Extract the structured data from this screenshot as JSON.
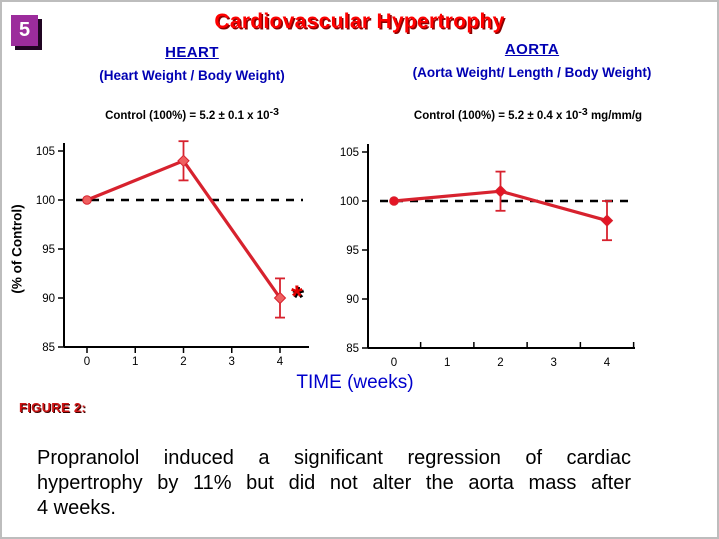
{
  "slide": {
    "number": "5",
    "title": "Cardiovascular Hypertrophy"
  },
  "y_axis_label": "(% of Control)",
  "x_axis_label": "TIME (weeks)",
  "figure": {
    "label": "FIGURE 2:",
    "caption_lines": [
      "Propranolol induced a significant regression of cardiac",
      "hypertrophy by 11% but did not alter the aorta mass after",
      "4 weeks."
    ]
  },
  "colors": {
    "title_red": "#ff0000",
    "title_shadow_dark_red": "#8b0000",
    "header_blue": "#0000b3",
    "time_label_blue": "#0000cc",
    "line_red": "#d7222e",
    "marker_heart_red": "#ef5f5f",
    "marker_aorta_red": "#e41525",
    "badge_purple": "#9c2c9c",
    "figure_label_red": "#cf1616",
    "axis_black": "#000000",
    "significance_red": "#e00000"
  },
  "chart_data": [
    {
      "type": "line",
      "title": "HEART",
      "subtitle": "(Heart Weight / Body Weight)",
      "control_label": "Control (100%) = 5.2 ± 0.1 x 10",
      "control_exponent": "-3",
      "control_unit": "",
      "xlabel": "TIME (weeks)",
      "ylabel": "(% of Control)",
      "x": [
        0,
        2,
        4
      ],
      "series": [
        {
          "name": "Heart weight (% of control)",
          "values": [
            100,
            104,
            90
          ],
          "errors": [
            0,
            2,
            2
          ]
        }
      ],
      "xticks": [
        0,
        1,
        2,
        3,
        4
      ],
      "yticks": [
        85,
        90,
        95,
        100,
        105
      ],
      "ylim": [
        85,
        107
      ],
      "reference_line": 100,
      "annotations": [
        {
          "text": "*",
          "x": 4.35,
          "y": 90.5
        }
      ]
    },
    {
      "type": "line",
      "title": "AORTA",
      "subtitle": "(Aorta Weight/ Length / Body Weight)",
      "control_label": "Control (100%) = 5.2 ± 0.4 x 10",
      "control_exponent": "-3",
      "control_unit": " mg/mm/g",
      "xlabel": "TIME (weeks)",
      "ylabel": "(% of Control)",
      "x": [
        0,
        2,
        4
      ],
      "series": [
        {
          "name": "Aorta weight/length (% of control)",
          "values": [
            100,
            101,
            98
          ],
          "errors": [
            0,
            2,
            2
          ]
        }
      ],
      "xticks": [
        0,
        1,
        2,
        3,
        4
      ],
      "yticks": [
        85,
        90,
        95,
        100,
        105
      ],
      "ylim": [
        85,
        107
      ],
      "reference_line": 100,
      "annotations": []
    }
  ]
}
